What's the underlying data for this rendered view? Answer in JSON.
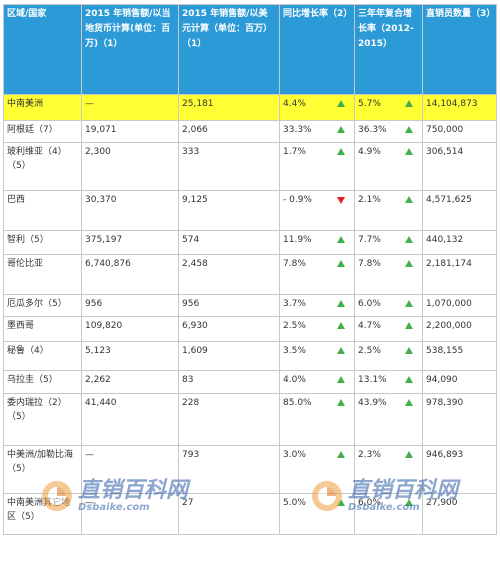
{
  "headers": [
    "区域/国家",
    "2015 年销售额/以当地货币计算(单位：百万)（1）",
    "2015 年销售额/以美元计算（单位：百万）（1）",
    "同比增长率（2）",
    "三年年复合增长率（2012-2015）",
    "直销员数量（3）"
  ],
  "rows": [
    {
      "region": "中南美洲",
      "local": "—",
      "usd": "25,181",
      "yoy": "4.4%",
      "yoy_dir": "up",
      "cagr": "5.7%",
      "cagr_dir": "up",
      "reps": "14,104,873",
      "highlight": true
    },
    {
      "region": "阿根廷（7）",
      "local": "19,071",
      "usd": "2,066",
      "yoy": "33.3%",
      "yoy_dir": "up",
      "cagr": "36.3%",
      "cagr_dir": "up",
      "reps": "750,000"
    },
    {
      "region": "玻利维亚（4）（5）",
      "local": "2,300",
      "usd": "333",
      "yoy": "1.7%",
      "yoy_dir": "up",
      "cagr": "4.9%",
      "cagr_dir": "up",
      "reps": "306,514"
    },
    {
      "region": "巴西",
      "local": "30,370",
      "usd": "9,125",
      "yoy": "- 0.9%",
      "yoy_dir": "down",
      "cagr": "2.1%",
      "cagr_dir": "up",
      "reps": "4,571,625"
    },
    {
      "region": "智利（5）",
      "local": "375,197",
      "usd": "574",
      "yoy": "11.9%",
      "yoy_dir": "up",
      "cagr": "7.7%",
      "cagr_dir": "up",
      "reps": "440,132"
    },
    {
      "region": "哥伦比亚",
      "local": "6,740,876",
      "usd": "2,458",
      "yoy": "7.8%",
      "yoy_dir": "up",
      "cagr": "7.8%",
      "cagr_dir": "up",
      "reps": "2,181,174"
    },
    {
      "region": "厄瓜多尔（5）",
      "local": "956",
      "usd": "956",
      "yoy": "3.7%",
      "yoy_dir": "up",
      "cagr": "6.0%",
      "cagr_dir": "up",
      "reps": "1,070,000"
    },
    {
      "region": "墨西哥",
      "local": "109,820",
      "usd": "6,930",
      "yoy": "2.5%",
      "yoy_dir": "up",
      "cagr": "4.7%",
      "cagr_dir": "up",
      "reps": "2,200,000"
    },
    {
      "region": "秘鲁（4）",
      "local": "5,123",
      "usd": "1,609",
      "yoy": "3.5%",
      "yoy_dir": "up",
      "cagr": "2.5%",
      "cagr_dir": "up",
      "reps": "538,155"
    },
    {
      "region": "乌拉圭（5）",
      "local": "2,262",
      "usd": "83",
      "yoy": "4.0%",
      "yoy_dir": "up",
      "cagr": "13.1%",
      "cagr_dir": "up",
      "reps": "94,090"
    },
    {
      "region": "委内瑞拉（2）（5）",
      "local": "41,440",
      "usd": "228",
      "yoy": "85.0%",
      "yoy_dir": "up",
      "cagr": "43.9%",
      "cagr_dir": "up",
      "reps": "978,390"
    },
    {
      "region": "中美洲/加勒比海（5）",
      "local": "—",
      "usd": "793",
      "yoy": "3.0%",
      "yoy_dir": "up",
      "cagr": "2.3%",
      "cagr_dir": "up",
      "reps": "946,893"
    },
    {
      "region": "中南美洲其它地区（5）",
      "local": "—",
      "usd": "27",
      "yoy": "5.0%",
      "yoy_dir": "up",
      "cagr": "6.0%",
      "cagr_dir": "up",
      "reps": "27,900"
    }
  ],
  "watermark": {
    "cn": "直销百科网",
    "en": "Dsbaike.com"
  },
  "colors": {
    "header_bg": "#2b9ad6",
    "highlight": "#ffff33",
    "up": "#45b04a",
    "down": "#e02020"
  }
}
